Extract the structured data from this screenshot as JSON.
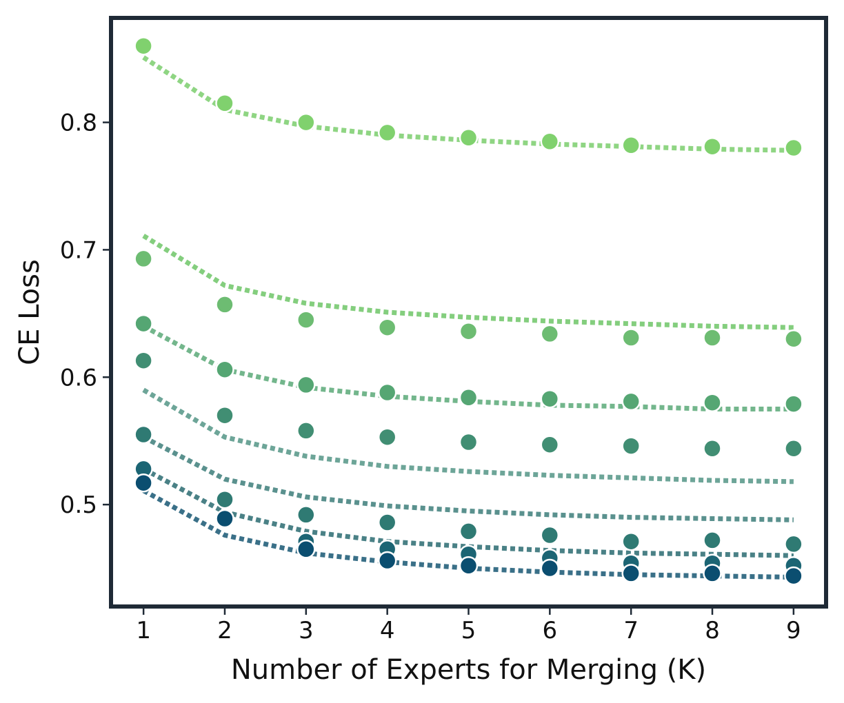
{
  "chart_data": {
    "type": "scatter",
    "title": "",
    "xlabel": "Number of Experts for Merging (K)",
    "ylabel": "CE Loss",
    "xlim": [
      0.6,
      9.4
    ],
    "ylim": [
      0.42,
      0.882
    ],
    "xticks": [
      1,
      2,
      3,
      4,
      5,
      6,
      7,
      8,
      9
    ],
    "yticks": [
      0.5,
      0.6,
      0.7,
      0.8
    ],
    "ytick_labels": [
      "0.5",
      "0.6",
      "0.7",
      "0.8"
    ],
    "frame_color": "#1f2a36",
    "fit_style": "dotted",
    "x": [
      1,
      2,
      3,
      4,
      5,
      6,
      7,
      8,
      9
    ],
    "series": [
      {
        "color": "#80d16e",
        "fit_color": "#8fd583",
        "values": [
          0.86,
          0.815,
          0.8,
          0.792,
          0.788,
          0.785,
          0.782,
          0.781,
          0.78
        ],
        "fit": [
          0.851,
          0.81,
          0.797,
          0.79,
          0.786,
          0.783,
          0.781,
          0.779,
          0.778
        ]
      },
      {
        "color": "#6dbc72",
        "fit_color": "#84ce7e",
        "values": [
          0.693,
          0.657,
          0.645,
          0.639,
          0.636,
          0.634,
          0.631,
          0.631,
          0.63
        ],
        "fit": [
          0.711,
          0.672,
          0.658,
          0.651,
          0.647,
          0.644,
          0.642,
          0.64,
          0.639
        ]
      },
      {
        "color": "#55a673",
        "fit_color": "#73b68c",
        "values": [
          0.642,
          0.606,
          0.594,
          0.588,
          0.584,
          0.583,
          0.581,
          0.58,
          0.579
        ],
        "fit": [
          0.64,
          0.606,
          0.592,
          0.585,
          0.581,
          0.578,
          0.577,
          0.575,
          0.575
        ]
      },
      {
        "color": "#418e73",
        "fit_color": "#6da598",
        "values": [
          0.613,
          0.57,
          0.558,
          0.553,
          0.549,
          0.547,
          0.546,
          0.544,
          0.544
        ],
        "fit": [
          0.59,
          0.553,
          0.538,
          0.53,
          0.526,
          0.523,
          0.521,
          0.519,
          0.518
        ]
      },
      {
        "color": "#2f7a73",
        "fit_color": "#5a918e",
        "values": [
          0.555,
          0.504,
          0.492,
          0.486,
          0.479,
          0.476,
          0.471,
          0.472,
          0.469
        ],
        "fit": [
          0.553,
          0.52,
          0.506,
          0.499,
          0.495,
          0.492,
          0.49,
          0.489,
          0.488
        ]
      },
      {
        "color": "#1c6574",
        "fit_color": "#4a8186",
        "values": [
          0.528,
          0.489,
          0.471,
          0.465,
          0.461,
          0.458,
          0.454,
          0.454,
          0.452
        ],
        "fit": [
          0.528,
          0.494,
          0.479,
          0.471,
          0.467,
          0.464,
          0.462,
          0.461,
          0.46
        ]
      },
      {
        "color": "#0b4e70",
        "fit_color": "#3a7088",
        "values": [
          0.517,
          0.489,
          0.465,
          0.456,
          0.452,
          0.45,
          0.446,
          0.446,
          0.444
        ],
        "fit": [
          0.511,
          0.476,
          0.462,
          0.455,
          0.45,
          0.447,
          0.445,
          0.444,
          0.443
        ]
      }
    ]
  }
}
